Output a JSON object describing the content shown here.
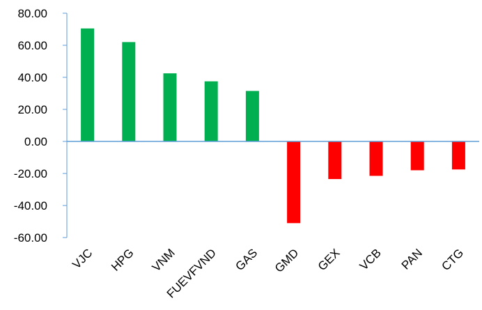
{
  "chart_data": {
    "type": "bar",
    "title": "",
    "xlabel": "",
    "ylabel": "",
    "categories": [
      "VJC",
      "HPG",
      "VNM",
      "FUEVFVND",
      "GAS",
      "GMD",
      "GEX",
      "VCB",
      "PAN",
      "CTG"
    ],
    "values": [
      70.5,
      62.0,
      42.5,
      37.5,
      31.5,
      -51.0,
      -23.5,
      -21.5,
      -18.0,
      -17.5
    ],
    "ylim": [
      -60,
      80
    ],
    "yticks": [
      80,
      60,
      40,
      20,
      0,
      -20,
      -40,
      -60
    ],
    "ytick_labels": [
      "80.00",
      "60.00",
      "40.00",
      "20.00",
      "0.00",
      "-20.00",
      "-40.00",
      "-60.00"
    ],
    "grid": false,
    "legend": "none",
    "colors": {
      "positive": "#00b050",
      "negative": "#ff0000",
      "axis": "#5b9bd5"
    }
  }
}
